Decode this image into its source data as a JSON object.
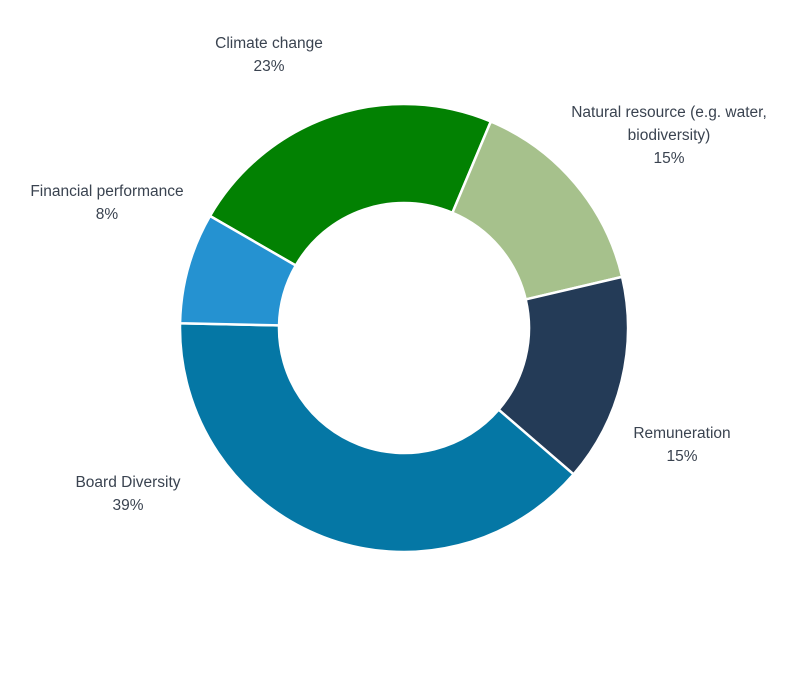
{
  "chart_data": {
    "type": "pie",
    "donut": true,
    "slices": [
      {
        "name": "Climate change",
        "label_lines": [
          "Climate change"
        ],
        "value_label": "23%",
        "value": 23,
        "color": "#028102"
      },
      {
        "name": "Natural resource (e.g. water, biodiversity)",
        "label_lines": [
          "Natural resource (e.g. water,",
          "biodiversity)"
        ],
        "value_label": "15%",
        "value": 15,
        "color": "#a6c18c"
      },
      {
        "name": "Remuneration",
        "label_lines": [
          "Remuneration"
        ],
        "value_label": "15%",
        "value": 15,
        "color": "#243b57"
      },
      {
        "name": "Board Diversity",
        "label_lines": [
          "Board Diversity"
        ],
        "value_label": "39%",
        "value": 39,
        "color": "#0577a5"
      },
      {
        "name": "Financial performance",
        "label_lines": [
          "Financial performance"
        ],
        "value_label": "8%",
        "value": 8,
        "color": "#2592d1"
      }
    ],
    "legend": "none",
    "data_labels": "outside"
  }
}
